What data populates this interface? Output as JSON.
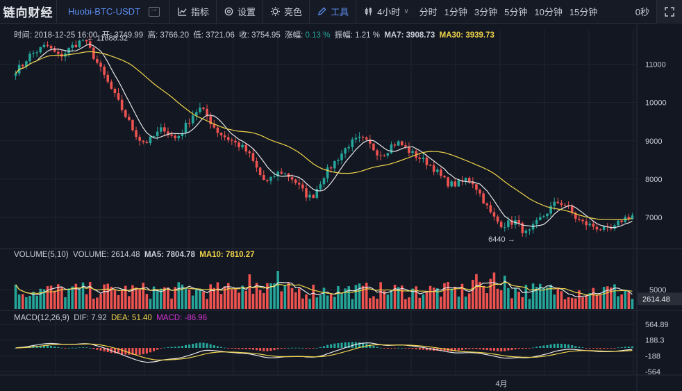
{
  "toolbar": {
    "logo": "链向财经",
    "symbol": "Huobi-BTC-USDT",
    "indicators": "指标",
    "settings": "设置",
    "brightness": "亮色",
    "tools": "工具",
    "interval_selected": "4小时",
    "intervals": [
      "分时",
      "1分钟",
      "3分钟",
      "5分钟",
      "10分钟",
      "15分钟"
    ],
    "countdown": "0秒"
  },
  "info": {
    "time_label": "时间:",
    "time": "2018-12-25  16:00",
    "open_label": "开:",
    "open": "3749.99",
    "high_label": "高:",
    "high": "3766.20",
    "low_label": "低:",
    "low": "3721.06",
    "close_label": "收:",
    "close": "3754.95",
    "change_label": "涨幅:",
    "change": "0.13 %",
    "amp_label": "振幅:",
    "amp": "1.21 %",
    "ma7_label": "MA7:",
    "ma7": "3908.73",
    "ma30_label": "MA30:",
    "ma30": "3939.73"
  },
  "volume_info": {
    "name": "VOLUME(5,10)",
    "vol_label": "VOLUME:",
    "vol": "2614.48",
    "ma5_label": "MA5:",
    "ma5": "7804.78",
    "ma10_label": "MA10:",
    "ma10": "7810.27"
  },
  "macd_info": {
    "name": "MACD(12,26,9)",
    "dif_label": "DIF:",
    "dif": "7.92",
    "dea_label": "DEA:",
    "dea": "51.40",
    "macd_label": "MACD:",
    "macd": "-86.96"
  },
  "colors": {
    "up": "#26a69a",
    "down": "#ef5350",
    "ma_fast": "#e8e8e8",
    "ma_slow": "#f0d44a",
    "background": "#131722",
    "grid": "#1f2430"
  },
  "chart_data": [
    {
      "type": "candlestick",
      "y_ticks": [
        7000,
        8000,
        9000,
        10000,
        11000
      ],
      "ylim": [
        6200,
        11900
      ],
      "annotations": [
        {
          "label": "← 11688.32",
          "value": 11688.32
        },
        {
          "label": "6440 →",
          "value": 6440
        }
      ],
      "series_names": [
        "MA7",
        "MA30"
      ],
      "close_path": [
        10850,
        10950,
        11200,
        11300,
        11400,
        11500,
        11350,
        11200,
        11300,
        11450,
        11550,
        11650,
        11400,
        11100,
        10800,
        10500,
        10200,
        9900,
        9600,
        9300,
        9050,
        8950,
        9050,
        9200,
        9350,
        9150,
        9050,
        9250,
        9500,
        9750,
        9850,
        9650,
        9400,
        9200,
        9100,
        9000,
        8900,
        8800,
        8600,
        8300,
        8000,
        7900,
        8100,
        8200,
        8100,
        8000,
        7800,
        7600,
        7500,
        7800,
        8100,
        8300,
        8500,
        8700,
        8900,
        9000,
        9050,
        8950,
        8800,
        8650,
        8700,
        8900,
        8950,
        8850,
        8700,
        8600,
        8500,
        8400,
        8250,
        8050,
        7900,
        7850,
        7900,
        8000,
        7950,
        7700,
        7400,
        7100,
        6900,
        6800,
        6850,
        6900,
        6700,
        6550,
        6750,
        6950,
        7100,
        7300,
        7400,
        7350,
        7150,
        6950,
        6850,
        6800,
        6750,
        6700,
        6650,
        6700,
        6900,
        7000,
        7050
      ]
    },
    {
      "type": "bar",
      "name": "VOLUME",
      "y_ticks": [
        5000
      ],
      "ylim": [
        0,
        12000
      ],
      "last_value": 2614.48
    },
    {
      "type": "bar+line",
      "name": "MACD",
      "y_ticks": [
        564.89,
        188.3,
        -188,
        -564
      ],
      "ylim": [
        -650,
        650
      ]
    }
  ],
  "axis": {
    "x_label": "4月",
    "price_label_last_volume": "2614.48"
  }
}
